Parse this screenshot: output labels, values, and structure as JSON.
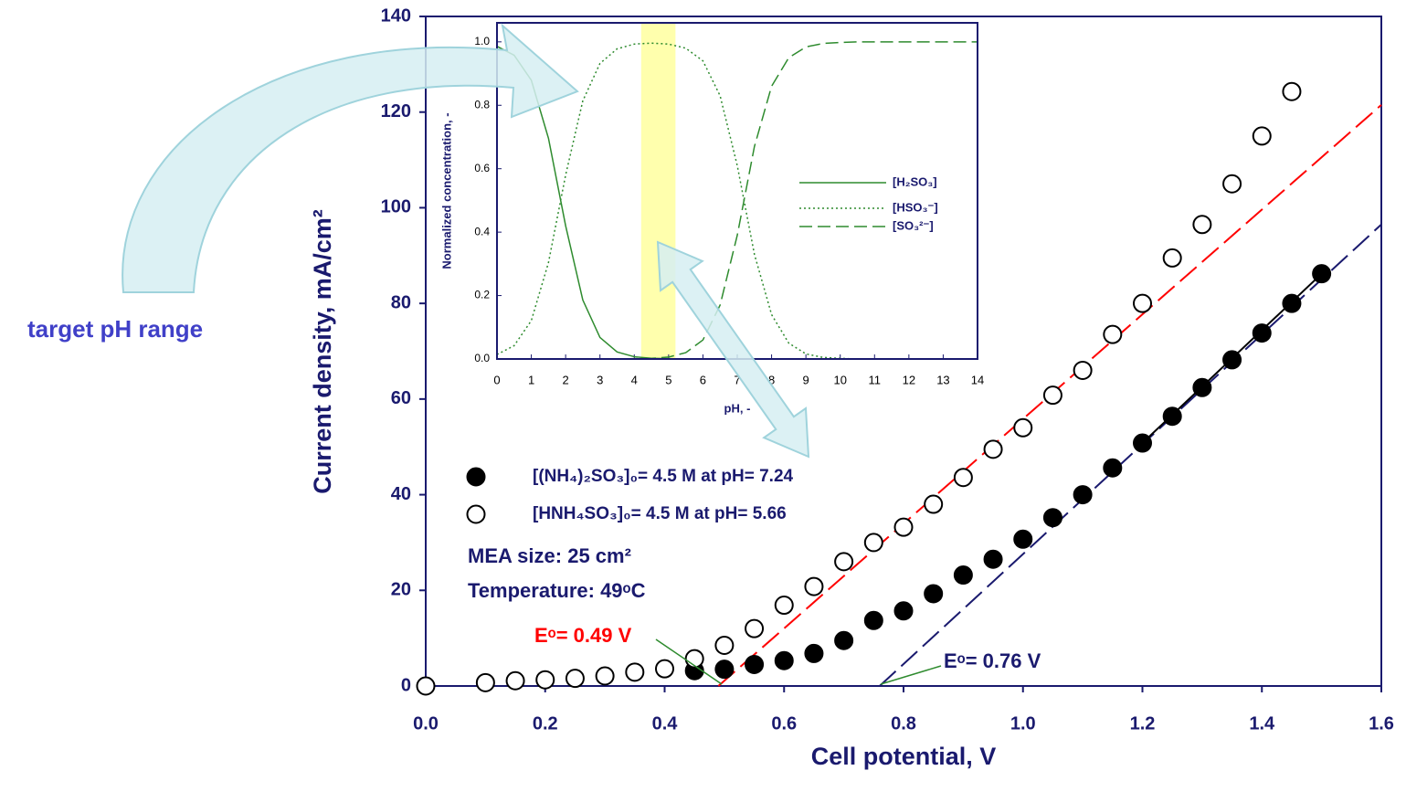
{
  "chart_data": [
    {
      "type": "scatter",
      "x_label": "Cell potential, V",
      "y_label": "Current density, mA/cm²",
      "xlim": [
        0,
        1.6
      ],
      "ylim": [
        0,
        140
      ],
      "xticks": [
        {
          "value": 0,
          "label": "0.0"
        },
        0.2,
        0.4,
        0.6,
        0.8,
        {
          "value": 1,
          "label": "1.0"
        },
        1.2,
        1.4,
        1.6
      ],
      "yticks": [
        0,
        20,
        40,
        60,
        80,
        100,
        120,
        140
      ],
      "series": [
        {
          "name": "[(NH₄)₂SO₃]₀= 4.5 M at pH= 7.24",
          "color": "#000000",
          "filled": true,
          "x": [
            0.45,
            0.5,
            0.55,
            0.6,
            0.65,
            0.7,
            0.75,
            0.8,
            0.85,
            0.9,
            0.95,
            1.0,
            1.05,
            1.1,
            1.15,
            1.2,
            1.25,
            1.3,
            1.35,
            1.4,
            1.45,
            1.5
          ],
          "values": [
            3.2,
            3.5,
            4.5,
            5.3,
            6.8,
            9.5,
            13.7,
            15.7,
            19.3,
            23.2,
            26.5,
            30.7,
            35.2,
            40,
            45.6,
            50.8,
            56.4,
            62.4,
            68.2,
            73.8,
            80,
            86.2
          ]
        },
        {
          "name": "[HNH₄SO₃]₀= 4.5 M at pH= 5.66",
          "color": "#000000",
          "filled": false,
          "x": [
            0,
            0.1,
            0.15,
            0.2,
            0.25,
            0.3,
            0.35,
            0.4,
            0.45,
            0.5,
            0.55,
            0.6,
            0.65,
            0.7,
            0.75,
            0.8,
            0.85,
            0.9,
            0.95,
            1.0,
            1.05,
            1.1,
            1.15,
            1.2,
            1.25,
            1.3,
            1.35,
            1.4,
            1.45
          ],
          "values": [
            0,
            0.7,
            1.1,
            1.3,
            1.6,
            2.1,
            2.9,
            3.6,
            5.7,
            8.5,
            12,
            16.9,
            20.8,
            26,
            30,
            33.2,
            38,
            43.6,
            49.5,
            54,
            60.8,
            66,
            73.5,
            80,
            89.5,
            96.5,
            105,
            115,
            124.3
          ]
        }
      ],
      "fit_lines": [
        {
          "color": "#ff0000",
          "dash": "dashed",
          "x": [
            0.49,
            1.6
          ],
          "values": [
            0,
            121.5
          ]
        },
        {
          "color": "#1a1a6e",
          "dash": "dashed",
          "x": [
            0.76,
            1.6
          ],
          "values": [
            0,
            96.5
          ]
        },
        {
          "color": "#000000",
          "dash": "solid",
          "x": [
            1.2,
            1.5
          ],
          "values": [
            50.8,
            86.2
          ]
        }
      ],
      "annotations": [
        "MEA size: 25 cm²",
        "Temperature: 49ᵒC",
        "Eᵒ= 0.49 V",
        "Eᵒ= 0.76 V",
        "target pH range"
      ]
    },
    {
      "type": "line",
      "x_label": "pH, -",
      "y_label": "Normalized concentration, -",
      "xlim": [
        0,
        14
      ],
      "ylim": [
        0,
        1.06
      ],
      "xticks": [
        0,
        1,
        2,
        3,
        4,
        5,
        6,
        7,
        8,
        9,
        10,
        11,
        12,
        13,
        14
      ],
      "yticks": [
        {
          "value": 0,
          "label": "0.0"
        },
        0.2,
        0.4,
        0.6,
        0.8,
        {
          "value": 1,
          "label": "1.0"
        }
      ],
      "x": [
        0,
        0.5,
        1,
        1.5,
        2,
        2.5,
        3,
        3.5,
        4,
        4.5,
        5,
        5.5,
        6,
        6.5,
        7,
        7.5,
        8,
        8.5,
        9,
        9.5,
        10,
        10.5,
        11,
        11.5,
        12,
        12.5,
        13,
        13.5,
        14
      ],
      "series": [
        {
          "name": "[H₂SO₃]",
          "color": "#2e8b2e",
          "dash": "solid",
          "values": [
            0.986,
            0.958,
            0.879,
            0.696,
            0.42,
            0.186,
            0.068,
            0.022,
            0.007,
            0.002,
            0.001,
            0,
            0,
            0,
            0,
            0,
            0,
            0,
            0,
            0,
            0,
            0,
            0,
            0,
            0,
            0,
            0,
            0,
            0
          ]
        },
        {
          "name": "[HSO₃⁻]",
          "color": "#2e8b2e",
          "dash": "dotted",
          "values": [
            0.014,
            0.042,
            0.121,
            0.304,
            0.58,
            0.814,
            0.932,
            0.978,
            0.993,
            0.996,
            0.993,
            0.98,
            0.94,
            0.83,
            0.61,
            0.33,
            0.14,
            0.05,
            0.016,
            0.005,
            0.002,
            0,
            0,
            0,
            0,
            0,
            0,
            0,
            0
          ]
        },
        {
          "name": "[SO₃²⁻]",
          "color": "#2e8b2e",
          "dash": "dashed",
          "values": [
            0,
            0,
            0,
            0,
            0,
            0,
            0,
            0,
            0.001,
            0.002,
            0.006,
            0.02,
            0.06,
            0.17,
            0.39,
            0.67,
            0.86,
            0.95,
            0.984,
            0.995,
            0.998,
            1,
            1,
            1,
            1,
            1,
            1,
            1,
            1
          ]
        }
      ]
    }
  ]
}
